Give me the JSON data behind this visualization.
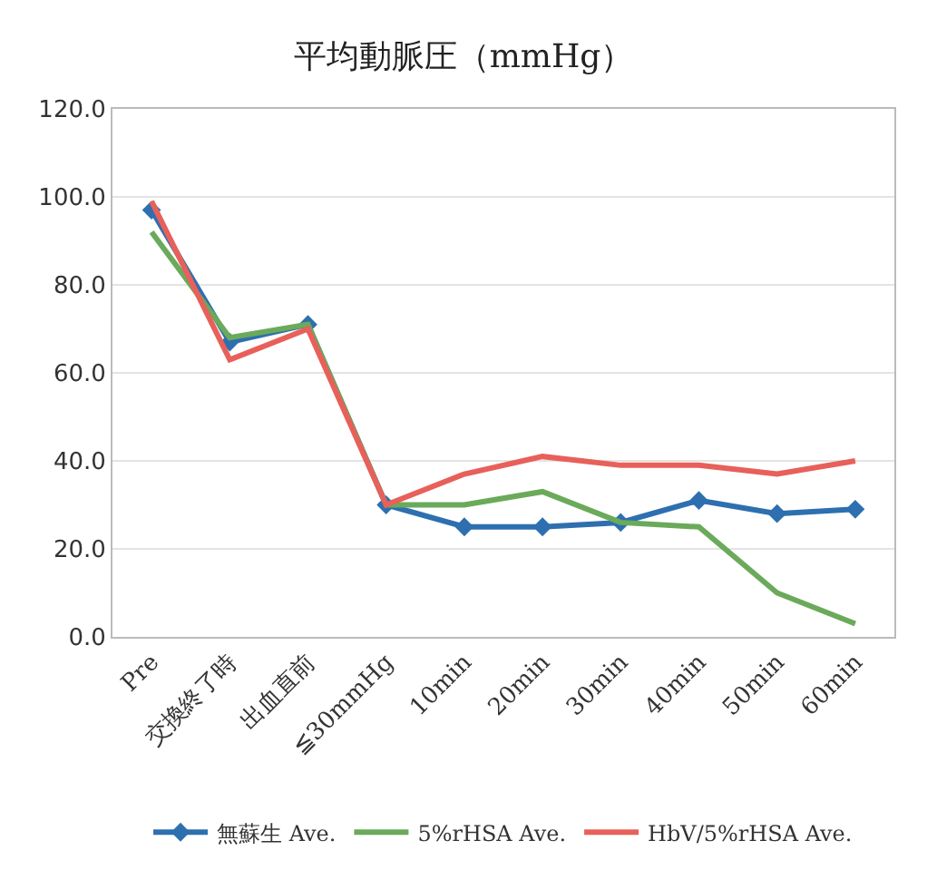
{
  "chart_data": {
    "type": "line",
    "title": "平均動脈圧（mmHg）",
    "categories": [
      "Pre",
      "交換終了時",
      "出血直前",
      "≦30mmHg",
      "10min",
      "20min",
      "30min",
      "40min",
      "50min",
      "60min"
    ],
    "series": [
      {
        "name": "無蘇生 Ave.",
        "color": "#2e6fb0",
        "marker": "diamond",
        "values": [
          97,
          67,
          71,
          30,
          25,
          25,
          26,
          31,
          28,
          29
        ]
      },
      {
        "name": "5%rHSA Ave.",
        "color": "#6aaa5a",
        "marker": "none",
        "values": [
          92,
          68,
          71,
          30,
          30,
          33,
          26,
          25,
          10,
          3
        ]
      },
      {
        "name": "HbV/5%rHSA Ave.",
        "color": "#e8605a",
        "marker": "none",
        "values": [
          99,
          63,
          70,
          30,
          37,
          41,
          39,
          39,
          37,
          40
        ]
      }
    ],
    "ylim": [
      0,
      120
    ],
    "yticks": [
      {
        "value": 0,
        "label": "0.0"
      },
      {
        "value": 20,
        "label": "20.0"
      },
      {
        "value": 40,
        "label": "40.0"
      },
      {
        "value": 60,
        "label": "60.0"
      },
      {
        "value": 80,
        "label": "80.0"
      },
      {
        "value": 100,
        "label": "100.0"
      },
      {
        "value": 120,
        "label": "120.0"
      }
    ],
    "grid": "y",
    "legend": "bottom",
    "line_style": "solid"
  }
}
